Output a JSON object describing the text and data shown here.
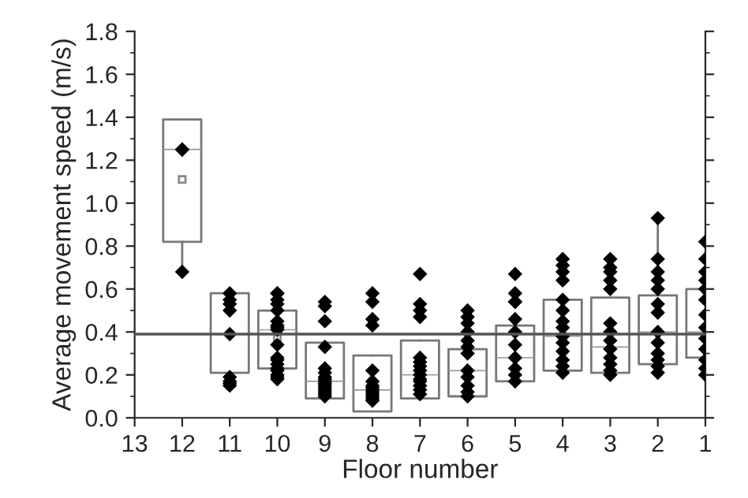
{
  "chart_data": {
    "type": "box",
    "xlabel": "Floor number",
    "ylabel": "Average movement speed (m/s)",
    "x": [
      12,
      11,
      10,
      9,
      8,
      7,
      6,
      5,
      4,
      3,
      2,
      1
    ],
    "boxes": [
      {
        "low": 0.68,
        "q1": 0.82,
        "median": 1.25,
        "q3": 1.39,
        "high": 1.39,
        "mean": 1.11
      },
      {
        "low": 0.21,
        "q1": 0.21,
        "median": 0.39,
        "q3": 0.58,
        "high": 0.58
      },
      {
        "low": 0.23,
        "q1": 0.23,
        "median": 0.41,
        "q3": 0.5,
        "high": 0.5,
        "mean": 0.37
      },
      {
        "low": 0.09,
        "q1": 0.09,
        "median": 0.17,
        "q3": 0.35,
        "high": 0.35
      },
      {
        "low": 0.03,
        "q1": 0.03,
        "median": 0.13,
        "q3": 0.29,
        "high": 0.29
      },
      {
        "low": 0.09,
        "q1": 0.09,
        "median": 0.2,
        "q3": 0.36,
        "high": 0.36
      },
      {
        "low": 0.1,
        "q1": 0.1,
        "median": 0.22,
        "q3": 0.32,
        "high": 0.32
      },
      {
        "low": 0.17,
        "q1": 0.17,
        "median": 0.28,
        "q3": 0.43,
        "high": 0.43
      },
      {
        "low": 0.22,
        "q1": 0.22,
        "median": 0.38,
        "q3": 0.55,
        "high": 0.55
      },
      {
        "low": 0.21,
        "q1": 0.21,
        "median": 0.33,
        "q3": 0.56,
        "high": 0.56
      },
      {
        "low": 0.25,
        "q1": 0.25,
        "median": 0.4,
        "q3": 0.57,
        "high": 0.93
      },
      {
        "low": 0.28,
        "q1": 0.28,
        "median": 0.4,
        "q3": 0.6,
        "high": 0.6
      }
    ],
    "series": [
      {
        "type": "scatter",
        "color": "#000000",
        "marker": "diamond",
        "x": [
          12,
          12,
          12,
          11,
          11,
          11,
          11,
          11,
          11,
          11,
          11,
          11,
          10,
          10,
          10,
          10,
          10,
          10,
          10,
          10,
          10,
          10,
          10,
          10,
          10,
          10,
          10,
          10,
          10,
          10,
          9,
          9,
          9,
          9,
          9,
          9,
          9,
          9,
          9,
          9,
          9,
          9,
          9,
          9,
          9,
          9,
          8,
          8,
          8,
          8,
          8,
          8,
          8,
          8,
          8,
          8,
          8,
          8,
          8,
          8,
          7,
          7,
          7,
          7,
          7,
          7,
          7,
          7,
          7,
          7,
          7,
          7,
          7,
          7,
          6,
          6,
          6,
          6,
          6,
          6,
          6,
          6,
          6,
          6,
          6,
          6,
          5,
          5,
          5,
          5,
          5,
          5,
          5,
          5,
          5,
          5,
          5,
          4,
          4,
          4,
          4,
          4,
          4,
          4,
          4,
          4,
          4,
          4,
          4,
          4,
          4,
          3,
          3,
          3,
          3,
          3,
          3,
          3,
          3,
          3,
          3,
          3,
          3,
          3,
          2,
          2,
          2,
          2,
          2,
          2,
          2,
          2,
          2,
          2,
          2,
          2,
          2,
          1,
          1,
          1,
          1,
          1,
          1,
          1,
          1,
          1,
          1,
          1,
          1,
          1
        ],
        "values": [
          1.25,
          1.25,
          0.68,
          0.58,
          0.55,
          0.53,
          0.5,
          0.39,
          0.19,
          0.17,
          0.16,
          0.15,
          0.58,
          0.58,
          0.55,
          0.53,
          0.5,
          0.45,
          0.43,
          0.42,
          0.41,
          0.34,
          0.28,
          0.27,
          0.25,
          0.23,
          0.22,
          0.2,
          0.19,
          0.18,
          0.54,
          0.52,
          0.45,
          0.33,
          0.23,
          0.21,
          0.19,
          0.18,
          0.17,
          0.16,
          0.15,
          0.14,
          0.13,
          0.12,
          0.11,
          0.1,
          0.58,
          0.54,
          0.46,
          0.43,
          0.22,
          0.17,
          0.15,
          0.14,
          0.13,
          0.12,
          0.11,
          0.1,
          0.09,
          0.08,
          0.67,
          0.53,
          0.5,
          0.47,
          0.28,
          0.26,
          0.24,
          0.22,
          0.2,
          0.18,
          0.17,
          0.15,
          0.13,
          0.11,
          0.5,
          0.47,
          0.44,
          0.4,
          0.36,
          0.33,
          0.3,
          0.22,
          0.19,
          0.15,
          0.12,
          0.1,
          0.67,
          0.58,
          0.54,
          0.54,
          0.46,
          0.4,
          0.34,
          0.28,
          0.23,
          0.2,
          0.17,
          0.74,
          0.71,
          0.68,
          0.64,
          0.55,
          0.5,
          0.45,
          0.42,
          0.38,
          0.35,
          0.31,
          0.27,
          0.24,
          0.21,
          0.74,
          0.7,
          0.68,
          0.64,
          0.6,
          0.44,
          0.4,
          0.36,
          0.32,
          0.28,
          0.25,
          0.22,
          0.2,
          0.93,
          0.74,
          0.68,
          0.64,
          0.6,
          0.53,
          0.49,
          0.4,
          0.35,
          0.3,
          0.27,
          0.24,
          0.21,
          0.82,
          0.74,
          0.68,
          0.64,
          0.6,
          0.55,
          0.48,
          0.42,
          0.37,
          0.32,
          0.27,
          0.23,
          0.2
        ]
      }
    ],
    "ref_lines": [
      {
        "axis": "y",
        "value": 0.39,
        "color": "#555555"
      }
    ],
    "xlim": [
      13,
      1
    ],
    "xticks": [
      13,
      12,
      11,
      10,
      9,
      8,
      7,
      6,
      5,
      4,
      3,
      2,
      1
    ],
    "ylim": [
      0,
      1.8
    ],
    "yticks": [
      {
        "value": 0,
        "label": "0.0"
      },
      0.2,
      0.4,
      0.6,
      0.8,
      {
        "value": 1,
        "label": "1.0"
      },
      1.2,
      1.4,
      1.6,
      1.8
    ],
    "grid": false,
    "legend": false
  }
}
